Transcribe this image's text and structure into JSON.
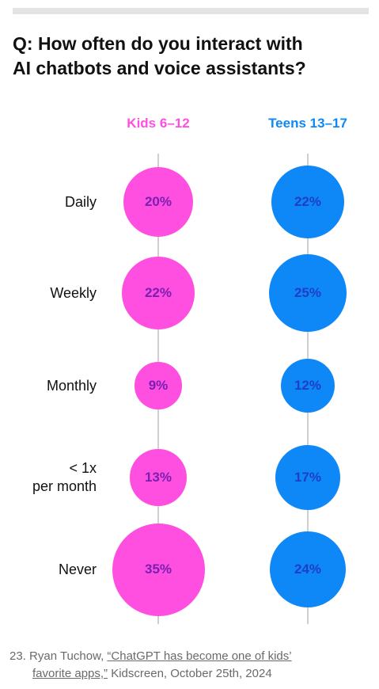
{
  "title_lines": [
    "Q: How often do you interact with",
    "AI chatbots and voice assistants?"
  ],
  "chart_data": {
    "type": "bubble",
    "title": "Q: How often do you interact with AI chatbots and voice assistants?",
    "categories": [
      "Daily",
      "Weekly",
      "Monthly",
      "< 1x per month",
      "Never"
    ],
    "category_lines": [
      [
        "Daily"
      ],
      [
        "Weekly"
      ],
      [
        "Monthly"
      ],
      [
        "< 1x",
        "per month"
      ],
      [
        "Never"
      ]
    ],
    "series": [
      {
        "name": "Kids 6–12",
        "color": "#ff4fe0",
        "text_color": "#7a1fb0",
        "values": [
          20,
          22,
          9,
          13,
          35
        ],
        "labels": [
          "20%",
          "22%",
          "9%",
          "13%",
          "35%"
        ]
      },
      {
        "name": "Teens 13–17",
        "color": "#0f88f7",
        "text_color": "#1e3fc4",
        "values": [
          22,
          25,
          12,
          17,
          24
        ],
        "labels": [
          "22%",
          "25%",
          "12%",
          "17%",
          "24%"
        ]
      }
    ],
    "grid": false,
    "legend": "top"
  },
  "footnote": {
    "number": "23.",
    "author": "Ryan Tuchow,",
    "link_text_1": "“ChatGPT has become one of kids’",
    "link_text_2": "favorite apps,”",
    "rest": "Kidscreen, October 25th, 2024"
  },
  "colors": {
    "top_bar": "#e3e3e3",
    "axis": "#cfcfcf"
  }
}
